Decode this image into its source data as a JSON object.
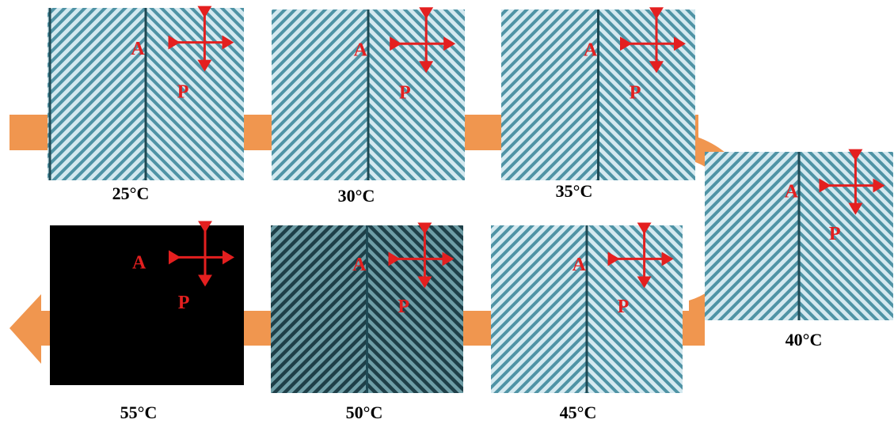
{
  "panels": [
    {
      "temperature": "25°C",
      "analyzer": "A",
      "polarizer": "P"
    },
    {
      "temperature": "30°C",
      "analyzer": "A",
      "polarizer": "P"
    },
    {
      "temperature": "35°C",
      "analyzer": "A",
      "polarizer": "P"
    },
    {
      "temperature": "40°C",
      "analyzer": "A",
      "polarizer": "P"
    },
    {
      "temperature": "45°C",
      "analyzer": "A",
      "polarizer": "P"
    },
    {
      "temperature": "50°C",
      "analyzer": "A",
      "polarizer": "P"
    },
    {
      "temperature": "55°C",
      "analyzer": "A",
      "polarizer": "P"
    }
  ]
}
